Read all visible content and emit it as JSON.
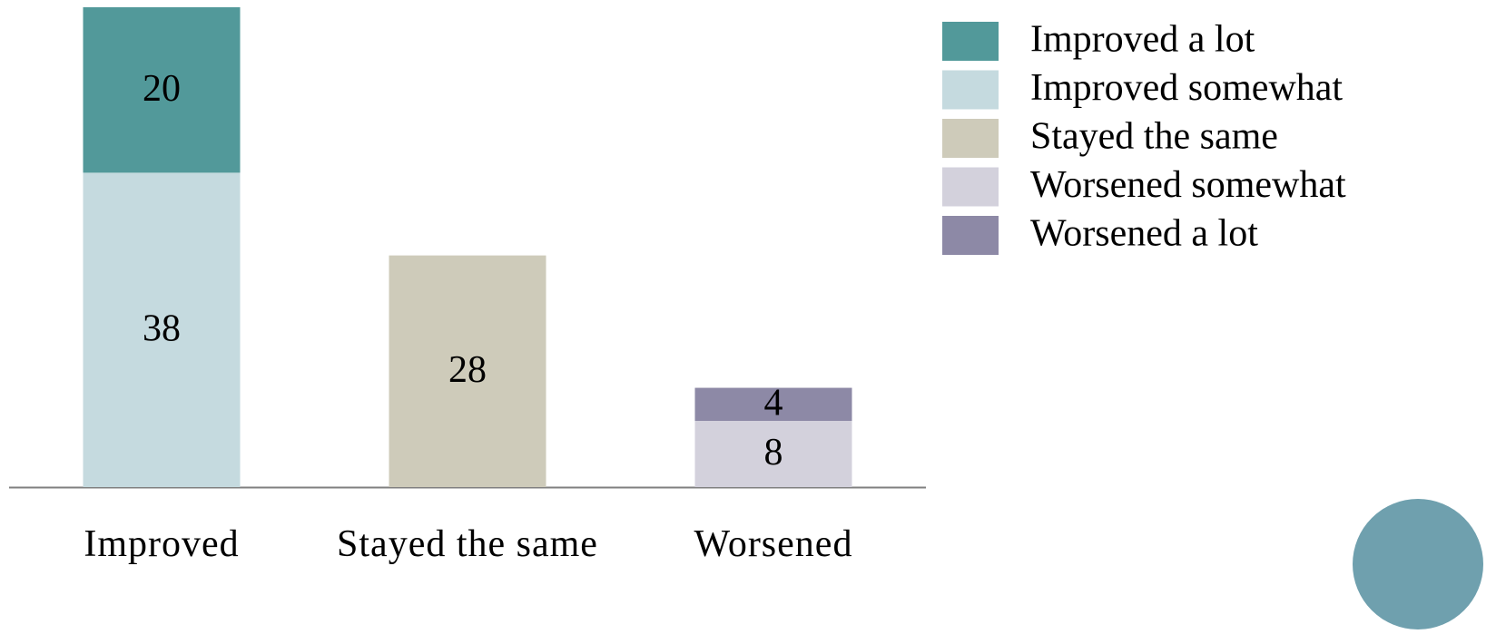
{
  "chart_data": {
    "type": "stacked-bar",
    "categories": [
      "Improved",
      "Stayed the same",
      "Worsened"
    ],
    "series": [
      {
        "name": "Improved somewhat",
        "color": "#c5dadf",
        "values": [
          38,
          null,
          null
        ]
      },
      {
        "name": "Improved a lot",
        "color": "#52999a",
        "values": [
          20,
          null,
          null
        ]
      },
      {
        "name": "Stayed the same",
        "color": "#cecbba",
        "values": [
          null,
          28,
          null
        ]
      },
      {
        "name": "Worsened somewhat",
        "color": "#d3d1dc",
        "values": [
          null,
          null,
          8
        ]
      },
      {
        "name": "Worsened a lot",
        "color": "#8d89a6",
        "values": [
          null,
          null,
          4
        ]
      }
    ],
    "legend_order": [
      "Improved a lot",
      "Improved somewhat",
      "Stayed the same",
      "Worsened somewhat",
      "Worsened a lot"
    ]
  }
}
